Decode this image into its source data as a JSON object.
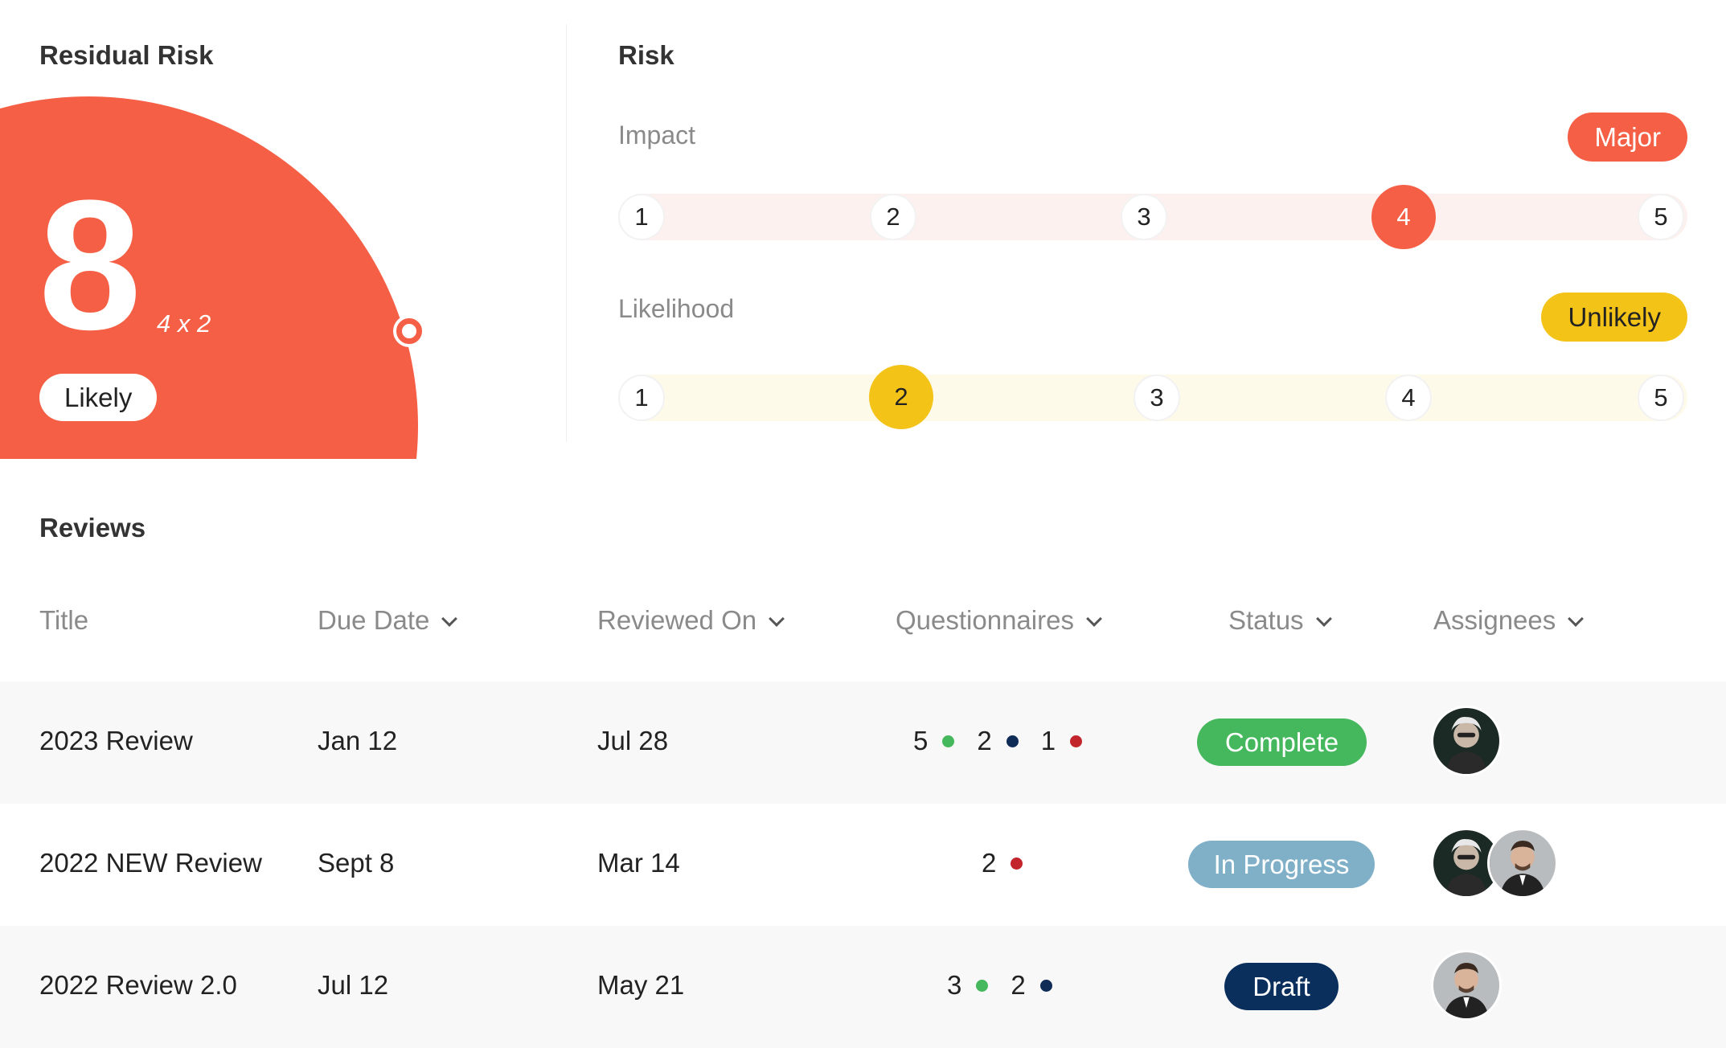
{
  "residual": {
    "title": "Residual Risk",
    "score": "8",
    "formula": "4 x 2",
    "label": "Likely"
  },
  "risk": {
    "title": "Risk",
    "impact": {
      "label": "Impact",
      "badge": "Major",
      "levels": [
        "1",
        "2",
        "3",
        "4",
        "5"
      ],
      "selected": "4"
    },
    "likelihood": {
      "label": "Likelihood",
      "badge": "Unlikely",
      "levels": [
        "1",
        "2",
        "3",
        "4",
        "5"
      ],
      "selected": "2"
    }
  },
  "reviews": {
    "title": "Reviews",
    "columns": {
      "title": "Title",
      "due_date": "Due Date",
      "reviewed_on": "Reviewed On",
      "questionnaires": "Questionnaires",
      "status": "Status",
      "assignees": "Assignees"
    },
    "rows": [
      {
        "title": "2023 Review",
        "due": "Jan 12",
        "reviewed": "Jul 28",
        "questionnaires": [
          {
            "count": "5",
            "color": "green"
          },
          {
            "count": "2",
            "color": "navy"
          },
          {
            "count": "1",
            "color": "red"
          }
        ],
        "status": "Complete"
      },
      {
        "title": "2022 NEW Review",
        "due": "Sept 8",
        "reviewed": "Mar 14",
        "questionnaires": [
          {
            "count": "2",
            "color": "red"
          }
        ],
        "status": "In Progress"
      },
      {
        "title": "2022 Review 2.0",
        "due": "Jul 12",
        "reviewed": "May 21",
        "questionnaires": [
          {
            "count": "3",
            "color": "green"
          },
          {
            "count": "2",
            "color": "navy"
          }
        ],
        "status": "Draft"
      }
    ]
  },
  "colors": {
    "accent_red": "#f55f45",
    "accent_yellow": "#f4c318",
    "status_complete": "#45b75c",
    "status_in_progress": "#7fb0c8",
    "status_draft": "#0b2f5c"
  }
}
